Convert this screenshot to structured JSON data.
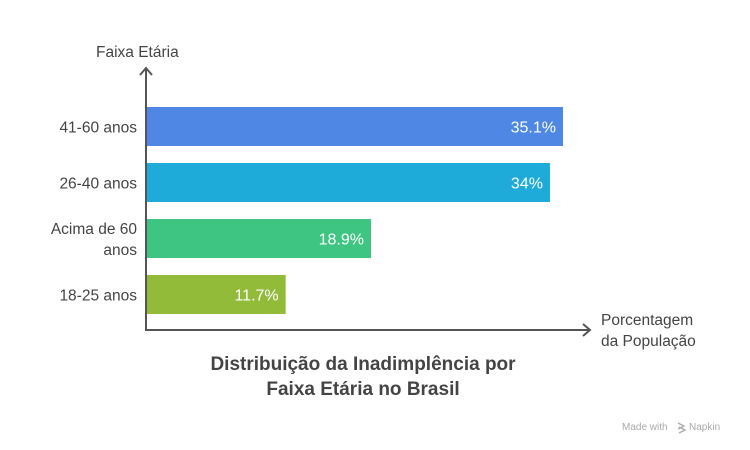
{
  "chart_data": {
    "type": "bar",
    "orientation": "horizontal",
    "title": "Distribuição da Inadimplência por Faixa Etária no Brasil",
    "title_lines": [
      "Distribuição da Inadimplência por",
      "Faixa Etária no Brasil"
    ],
    "ylabel": "Faixa Etária",
    "xlabel": "Porcentagem da População",
    "xlabel_lines": [
      "Porcentagem",
      "da População"
    ],
    "categories": [
      "41-60 anos",
      "26-40 anos",
      "Acima de 60 anos",
      "18-25 anos"
    ],
    "category_lines": [
      [
        "41-60 anos"
      ],
      [
        "26-40 anos"
      ],
      [
        "Acima de 60",
        "anos"
      ],
      [
        "18-25 anos"
      ]
    ],
    "values": [
      35.1,
      34,
      18.9,
      11.7
    ],
    "value_labels": [
      "35.1%",
      "34%",
      "18.9%",
      "11.7%"
    ],
    "colors": [
      "#4e87e4",
      "#1eabd9",
      "#3dc581",
      "#93bb3a"
    ],
    "grid": false,
    "legend": "none"
  },
  "footer": {
    "made_with": "Made with",
    "brand": "Napkin"
  }
}
